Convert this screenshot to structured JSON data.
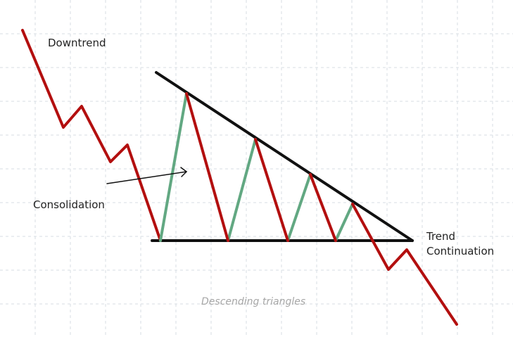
{
  "labels": {
    "downtrend": "Downtrend",
    "consolidation": "Consolidation",
    "trend_continuation_line1": "Trend",
    "trend_continuation_line2": "Continuation",
    "caption": "Descending triangles"
  },
  "colors": {
    "down_move": "#b30f0f",
    "up_move": "#62a882",
    "trendline": "#111111",
    "grid": "#d7dee3",
    "caption": "#a6a6a6"
  }
}
